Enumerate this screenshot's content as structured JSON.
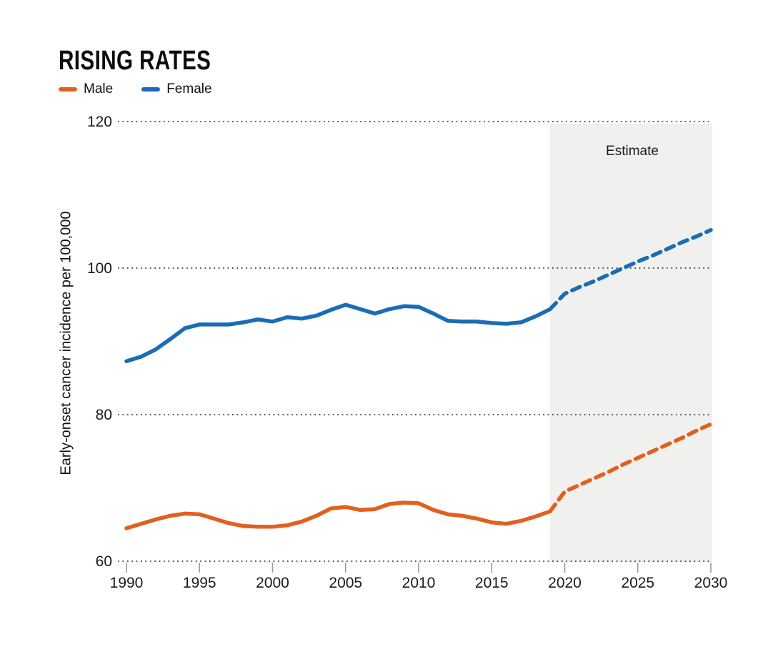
{
  "header": {
    "title": "RISING RATES"
  },
  "legend": [
    {
      "label": "Male",
      "color": "#e2601e"
    },
    {
      "label": "Female",
      "color": "#1a6db4"
    }
  ],
  "colors": {
    "male": "#e2601e",
    "female": "#1a6db4",
    "estimate_region_fill": "#f0f0ee",
    "gridline_dots": "#3c3c3c",
    "tick_marks": "#9a9a9a",
    "text": "#1a1a1a"
  },
  "chart_data": {
    "type": "line",
    "title": "RISING RATES",
    "xlabel": "",
    "ylabel": "Early-onset cancer incidence per 100,000",
    "ylim": [
      60,
      120
    ],
    "xlim": [
      1989.4,
      2030.1
    ],
    "y_ticks": [
      120,
      100,
      80,
      60
    ],
    "x_ticks": [
      1990,
      1995,
      2000,
      2005,
      2010,
      2015,
      2020,
      2025,
      2030
    ],
    "grid": "horizontal dotted lines at each y tick",
    "legend_position": "top-left above plot",
    "estimate_region": {
      "label": "Estimate",
      "start_year": 2019,
      "end_year": 2030
    },
    "series": [
      {
        "name": "Male",
        "color": "#e2601e",
        "style": "solid",
        "x": [
          1990,
          1991,
          1992,
          1993,
          1994,
          1995,
          1996,
          1997,
          1998,
          1999,
          2000,
          2001,
          2002,
          2003,
          2004,
          2005,
          2006,
          2007,
          2008,
          2009,
          2010,
          2011,
          2012,
          2013,
          2014,
          2015,
          2016,
          2017,
          2018,
          2019
        ],
        "values": [
          64.5,
          65.1,
          65.7,
          66.2,
          66.5,
          66.4,
          65.8,
          65.2,
          64.8,
          64.7,
          64.7,
          64.9,
          65.4,
          66.2,
          67.2,
          67.4,
          67.0,
          67.1,
          67.8,
          68.0,
          67.9,
          67.0,
          66.4,
          66.2,
          65.8,
          65.3,
          65.1,
          65.5,
          66.1,
          66.8
        ]
      },
      {
        "name": "Male (estimate)",
        "color": "#e2601e",
        "style": "dashed",
        "x": [
          2019,
          2020,
          2021,
          2022,
          2023,
          2024,
          2025,
          2026,
          2027,
          2028,
          2029,
          2030
        ],
        "values": [
          66.8,
          69.5,
          70.4,
          71.3,
          72.2,
          73.2,
          74.1,
          75.0,
          75.9,
          76.8,
          77.8,
          78.7
        ]
      },
      {
        "name": "Female",
        "color": "#1a6db4",
        "style": "solid",
        "x": [
          1990,
          1991,
          1992,
          1993,
          1994,
          1995,
          1996,
          1997,
          1998,
          1999,
          2000,
          2001,
          2002,
          2003,
          2004,
          2005,
          2006,
          2007,
          2008,
          2009,
          2010,
          2011,
          2012,
          2013,
          2014,
          2015,
          2016,
          2017,
          2018,
          2019
        ],
        "values": [
          87.3,
          87.9,
          88.9,
          90.3,
          91.8,
          92.3,
          92.3,
          92.3,
          92.6,
          93.0,
          92.7,
          93.3,
          93.1,
          93.5,
          94.3,
          95.0,
          94.4,
          93.8,
          94.4,
          94.8,
          94.7,
          93.8,
          92.8,
          92.7,
          92.7,
          92.5,
          92.4,
          92.6,
          93.4,
          94.4
        ]
      },
      {
        "name": "Female (estimate)",
        "color": "#1a6db4",
        "style": "dashed",
        "x": [
          2019,
          2020,
          2021,
          2022,
          2023,
          2024,
          2025,
          2026,
          2027,
          2028,
          2029,
          2030
        ],
        "values": [
          94.4,
          96.5,
          97.4,
          98.2,
          99.1,
          100.0,
          100.9,
          101.7,
          102.6,
          103.5,
          104.3,
          105.2
        ]
      }
    ]
  }
}
